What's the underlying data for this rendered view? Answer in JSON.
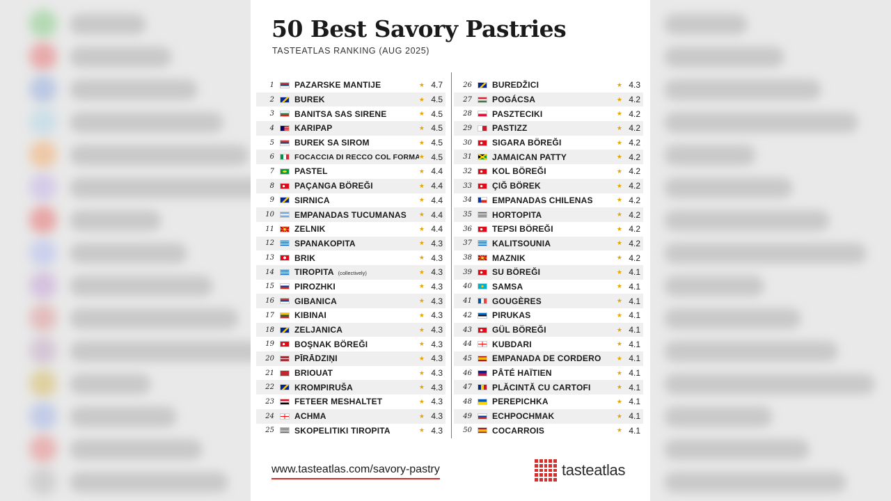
{
  "header": {
    "title": "50 Best Savory Pastries",
    "subtitle": "TASTEATLAS RANKING (AUG 2025)"
  },
  "colors": {
    "star": "#e3a600",
    "brand_red": "#d32f2f",
    "row_alt": "#efefef"
  },
  "ranking_left": [
    {
      "rank": "1",
      "name": "PAZARSKE MANTIJE",
      "score": "4.7",
      "flag": "serbia"
    },
    {
      "rank": "2",
      "name": "BUREK",
      "score": "4.5",
      "flag": "bosnia"
    },
    {
      "rank": "3",
      "name": "BANITSA SAS SIRENE",
      "score": "4.5",
      "flag": "bulgaria"
    },
    {
      "rank": "4",
      "name": "KARIPAP",
      "score": "4.5",
      "flag": "malaysia"
    },
    {
      "rank": "5",
      "name": "BUREK SA SIROM",
      "score": "4.5",
      "flag": "serbia"
    },
    {
      "rank": "6",
      "name": "FOCACCIA DI RECCO COL FORMAGGIO",
      "score": "4.5",
      "flag": "italy",
      "small": true
    },
    {
      "rank": "7",
      "name": "PASTEL",
      "score": "4.4",
      "flag": "brazil"
    },
    {
      "rank": "8",
      "name": "PAÇANGA BÖREĞI",
      "score": "4.4",
      "flag": "turkey"
    },
    {
      "rank": "9",
      "name": "SIRNICA",
      "score": "4.4",
      "flag": "bosnia"
    },
    {
      "rank": "10",
      "name": "EMPANADAS TUCUMANAS",
      "score": "4.4",
      "flag": "argentina"
    },
    {
      "rank": "11",
      "name": "ZELNIK",
      "score": "4.4",
      "flag": "macedonia"
    },
    {
      "rank": "12",
      "name": "SPANAKOPITA",
      "score": "4.3",
      "flag": "greece"
    },
    {
      "rank": "13",
      "name": "BRIK",
      "score": "4.3",
      "flag": "tunisia"
    },
    {
      "rank": "14",
      "name": "TIROPITA",
      "note": "(collectively)",
      "score": "4.3",
      "flag": "greece"
    },
    {
      "rank": "15",
      "name": "PIROZHKI",
      "score": "4.3",
      "flag": "russia"
    },
    {
      "rank": "16",
      "name": "GIBANICA",
      "score": "4.3",
      "flag": "serbia"
    },
    {
      "rank": "17",
      "name": "KIBINAI",
      "score": "4.3",
      "flag": "lithuania"
    },
    {
      "rank": "18",
      "name": "ZELJANICA",
      "score": "4.3",
      "flag": "bosnia"
    },
    {
      "rank": "19",
      "name": "BOŞNAK BÖREĞI",
      "score": "4.3",
      "flag": "turkey"
    },
    {
      "rank": "20",
      "name": "PĪRĀDZIŅI",
      "score": "4.3",
      "flag": "latvia"
    },
    {
      "rank": "21",
      "name": "BRIOUAT",
      "score": "4.3",
      "flag": "morocco"
    },
    {
      "rank": "22",
      "name": "KROMPIRUŠA",
      "score": "4.3",
      "flag": "bosnia"
    },
    {
      "rank": "23",
      "name": "FETEER MESHALTET",
      "score": "4.3",
      "flag": "egypt"
    },
    {
      "rank": "24",
      "name": "ACHMA",
      "score": "4.3",
      "flag": "georgia"
    },
    {
      "rank": "25",
      "name": "SKOPELITIKI TIROPITA",
      "score": "4.3",
      "flag": "greece"
    }
  ],
  "ranking_right": [
    {
      "rank": "26",
      "name": "BUREDŽICI",
      "score": "4.3",
      "flag": "bosnia"
    },
    {
      "rank": "27",
      "name": "POGÁCSA",
      "score": "4.2",
      "flag": "hungary"
    },
    {
      "rank": "28",
      "name": "PASZTECIKI",
      "score": "4.2",
      "flag": "poland"
    },
    {
      "rank": "29",
      "name": "PASTIZZ",
      "score": "4.2",
      "flag": "malta"
    },
    {
      "rank": "30",
      "name": "SIGARA BÖREĞI",
      "score": "4.2",
      "flag": "turkey"
    },
    {
      "rank": "31",
      "name": "JAMAICAN PATTY",
      "score": "4.2",
      "flag": "jamaica"
    },
    {
      "rank": "32",
      "name": "KOL BÖREĞI",
      "score": "4.2",
      "flag": "turkey"
    },
    {
      "rank": "33",
      "name": "ÇIĞ BÖREK",
      "score": "4.2",
      "flag": "turkey"
    },
    {
      "rank": "34",
      "name": "EMPANADAS CHILENAS",
      "score": "4.2",
      "flag": "chile"
    },
    {
      "rank": "35",
      "name": "HORTOPITA",
      "score": "4.2",
      "flag": "greece"
    },
    {
      "rank": "36",
      "name": "TEPSI BÖREĞI",
      "score": "4.2",
      "flag": "turkey"
    },
    {
      "rank": "37",
      "name": "KALITSOUNIA",
      "score": "4.2",
      "flag": "greece"
    },
    {
      "rank": "38",
      "name": "MAZNIK",
      "score": "4.2",
      "flag": "macedonia"
    },
    {
      "rank": "39",
      "name": "SU BÖREĞI",
      "score": "4.1",
      "flag": "turkey"
    },
    {
      "rank": "40",
      "name": "SAMSA",
      "score": "4.1",
      "flag": "kazakhstan"
    },
    {
      "rank": "41",
      "name": "GOUGÈRES",
      "score": "4.1",
      "flag": "france"
    },
    {
      "rank": "42",
      "name": "PIRUKAS",
      "score": "4.1",
      "flag": "estonia"
    },
    {
      "rank": "43",
      "name": "GÜL BÖREĞI",
      "score": "4.1",
      "flag": "turkey"
    },
    {
      "rank": "44",
      "name": "KUBDARI",
      "score": "4.1",
      "flag": "georgia"
    },
    {
      "rank": "45",
      "name": "EMPANADA DE CORDERO",
      "score": "4.1",
      "flag": "spain"
    },
    {
      "rank": "46",
      "name": "PÂTÉ HAÏTIEN",
      "score": "4.1",
      "flag": "haiti"
    },
    {
      "rank": "47",
      "name": "PLĂCINTĂ CU CARTOFI",
      "score": "4.1",
      "flag": "romania"
    },
    {
      "rank": "48",
      "name": "PEREPICHKA",
      "score": "4.1",
      "flag": "ukraine"
    },
    {
      "rank": "49",
      "name": "ECHPOCHMAK",
      "score": "4.1",
      "flag": "russia"
    },
    {
      "rank": "50",
      "name": "COCARROIS",
      "score": "4.1",
      "flag": "spain"
    }
  ],
  "footer": {
    "url": "www.tasteatlas.com/savory-pastry",
    "brand": "tasteatlas",
    "brand_icon": "tasteatlas-grid-logo"
  }
}
